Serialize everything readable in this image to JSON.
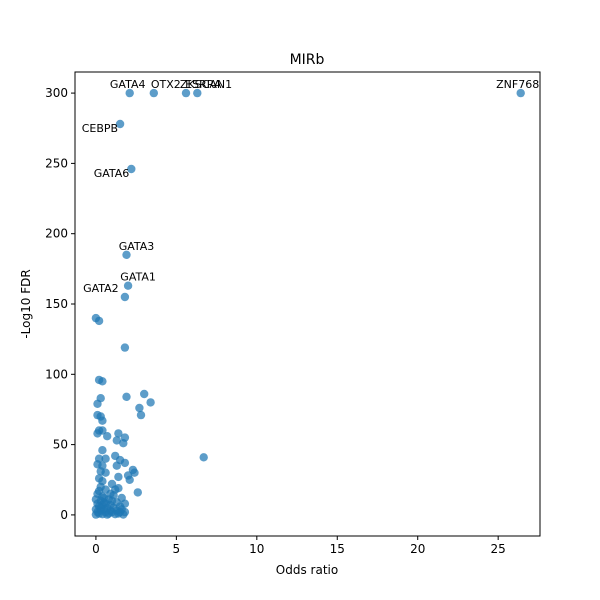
{
  "chart_data": {
    "type": "scatter",
    "title": "MIRb",
    "xlabel": "Odds ratio",
    "ylabel": "-Log10 FDR",
    "xlim": [
      -1.3,
      27.6
    ],
    "ylim": [
      -15,
      315
    ],
    "xticks": [
      0,
      5,
      10,
      15,
      20,
      25
    ],
    "yticks": [
      0,
      50,
      100,
      150,
      200,
      250,
      300
    ],
    "grid": false,
    "point_color": "#1f77b4",
    "points": [
      {
        "x": 26.4,
        "y": 300,
        "label": "ZNF768"
      },
      {
        "x": 2.1,
        "y": 300,
        "label": "GATA4"
      },
      {
        "x": 3.6,
        "y": 300,
        "label": "OTX2"
      },
      {
        "x": 5.6,
        "y": 300,
        "label": "ZKSCAN1"
      },
      {
        "x": 6.3,
        "y": 300,
        "label": "ESRRA"
      },
      {
        "x": 1.5,
        "y": 278,
        "label": "CEBPB"
      },
      {
        "x": 2.2,
        "y": 246,
        "label": "GATA6"
      },
      {
        "x": 1.9,
        "y": 185,
        "label": "GATA3"
      },
      {
        "x": 2.0,
        "y": 163,
        "label": "GATA1"
      },
      {
        "x": 1.8,
        "y": 155,
        "label": "GATA2"
      },
      {
        "x": 0.0,
        "y": 140
      },
      {
        "x": 0.2,
        "y": 138
      },
      {
        "x": 1.8,
        "y": 119
      },
      {
        "x": 0.2,
        "y": 96
      },
      {
        "x": 0.4,
        "y": 95
      },
      {
        "x": 3.0,
        "y": 86
      },
      {
        "x": 1.9,
        "y": 84
      },
      {
        "x": 0.3,
        "y": 83
      },
      {
        "x": 3.4,
        "y": 80
      },
      {
        "x": 0.1,
        "y": 79
      },
      {
        "x": 2.7,
        "y": 76
      },
      {
        "x": 0.1,
        "y": 71
      },
      {
        "x": 2.8,
        "y": 71
      },
      {
        "x": 0.3,
        "y": 70
      },
      {
        "x": 0.4,
        "y": 67
      },
      {
        "x": 0.2,
        "y": 60
      },
      {
        "x": 0.4,
        "y": 60
      },
      {
        "x": 0.1,
        "y": 58
      },
      {
        "x": 1.4,
        "y": 58
      },
      {
        "x": 0.7,
        "y": 56
      },
      {
        "x": 1.8,
        "y": 55
      },
      {
        "x": 1.3,
        "y": 53
      },
      {
        "x": 1.7,
        "y": 51
      },
      {
        "x": 0.4,
        "y": 46
      },
      {
        "x": 1.2,
        "y": 42
      },
      {
        "x": 6.7,
        "y": 41
      },
      {
        "x": 0.2,
        "y": 40
      },
      {
        "x": 0.6,
        "y": 40
      },
      {
        "x": 1.5,
        "y": 39
      },
      {
        "x": 1.8,
        "y": 37
      },
      {
        "x": 0.1,
        "y": 36
      },
      {
        "x": 0.4,
        "y": 35
      },
      {
        "x": 1.3,
        "y": 35
      },
      {
        "x": 2.3,
        "y": 32
      },
      {
        "x": 0.3,
        "y": 31
      },
      {
        "x": 0.6,
        "y": 30
      },
      {
        "x": 2.4,
        "y": 30
      },
      {
        "x": 2.0,
        "y": 28
      },
      {
        "x": 1.4,
        "y": 27
      },
      {
        "x": 0.2,
        "y": 26
      },
      {
        "x": 2.1,
        "y": 25
      },
      {
        "x": 0.4,
        "y": 24
      },
      {
        "x": 1.0,
        "y": 22
      },
      {
        "x": 0.3,
        "y": 20
      },
      {
        "x": 1.4,
        "y": 19
      },
      {
        "x": 0.6,
        "y": 18
      },
      {
        "x": 2.6,
        "y": 16
      },
      {
        "x": 0.1,
        "y": 15
      },
      {
        "x": 1.1,
        "y": 14
      },
      {
        "x": 0.4,
        "y": 13
      },
      {
        "x": 1.6,
        "y": 12
      },
      {
        "x": 0.0,
        "y": 11
      },
      {
        "x": 0.8,
        "y": 11
      },
      {
        "x": 0.3,
        "y": 10
      },
      {
        "x": 1.3,
        "y": 9
      },
      {
        "x": 0.5,
        "y": 9
      },
      {
        "x": 1.8,
        "y": 8
      },
      {
        "x": 0.1,
        "y": 8
      },
      {
        "x": 0.9,
        "y": 7
      },
      {
        "x": 0.4,
        "y": 7
      },
      {
        "x": 1.5,
        "y": 6
      },
      {
        "x": 0.2,
        "y": 6
      },
      {
        "x": 0.7,
        "y": 5
      },
      {
        "x": 1.1,
        "y": 5
      },
      {
        "x": 0.0,
        "y": 4
      },
      {
        "x": 0.5,
        "y": 4
      },
      {
        "x": 1.6,
        "y": 4
      },
      {
        "x": 0.3,
        "y": 3
      },
      {
        "x": 0.9,
        "y": 3
      },
      {
        "x": 1.3,
        "y": 3
      },
      {
        "x": 0.1,
        "y": 2
      },
      {
        "x": 0.6,
        "y": 2
      },
      {
        "x": 1.0,
        "y": 2
      },
      {
        "x": 1.8,
        "y": 2
      },
      {
        "x": 0.2,
        "y": 1
      },
      {
        "x": 0.8,
        "y": 1
      },
      {
        "x": 1.4,
        "y": 1
      },
      {
        "x": 0.4,
        "y": 0.5
      },
      {
        "x": 1.2,
        "y": 0.5
      },
      {
        "x": 0.0,
        "y": 0.2
      },
      {
        "x": 0.7,
        "y": 0.2
      },
      {
        "x": 1.7,
        "y": 0.3
      },
      {
        "x": 0.5,
        "y": 12
      },
      {
        "x": 0.9,
        "y": 15
      },
      {
        "x": 0.2,
        "y": 17
      },
      {
        "x": 1.2,
        "y": 18
      },
      {
        "x": 0.6,
        "y": 8
      },
      {
        "x": 1.0,
        "y": 10
      },
      {
        "x": 0.3,
        "y": 5
      },
      {
        "x": 1.5,
        "y": 2
      }
    ]
  }
}
